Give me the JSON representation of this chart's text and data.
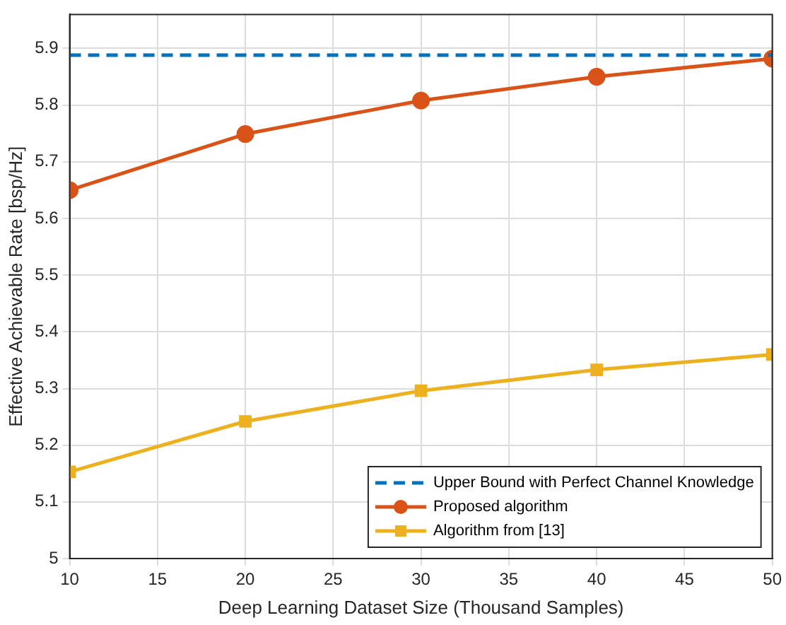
{
  "chart_data": {
    "type": "line",
    "xlabel": "Deep Learning Dataset Size (Thousand Samples)",
    "ylabel": "Effective Achievable Rate [bsp/Hz]",
    "x": [
      10,
      20,
      30,
      40,
      50
    ],
    "series": [
      {
        "name": "Upper Bound with Perfect Channel Knowledge",
        "color": "#0072bd",
        "x": [
          10,
          50
        ],
        "values": [
          5.888,
          5.888
        ],
        "line_style": "dashed",
        "marker": "none"
      },
      {
        "name": "Proposed algorithm",
        "color": "#d95319",
        "values": [
          5.65,
          5.749,
          5.808,
          5.85,
          5.882
        ],
        "line_style": "solid",
        "marker": "circle"
      },
      {
        "name": "Algorithm from [13]",
        "color": "#edb120",
        "values": [
          5.153,
          5.242,
          5.296,
          5.333,
          5.36
        ],
        "line_style": "solid",
        "marker": "square"
      }
    ],
    "xlim": [
      10,
      50
    ],
    "xticks": [
      10,
      15,
      20,
      25,
      30,
      35,
      40,
      45,
      50
    ],
    "ylim": [
      5,
      5.96
    ],
    "yticks": [
      5,
      5.1,
      5.2,
      5.3,
      5.4,
      5.5,
      5.6,
      5.7,
      5.8,
      5.9
    ],
    "grid": true,
    "legend": "bottom right"
  }
}
